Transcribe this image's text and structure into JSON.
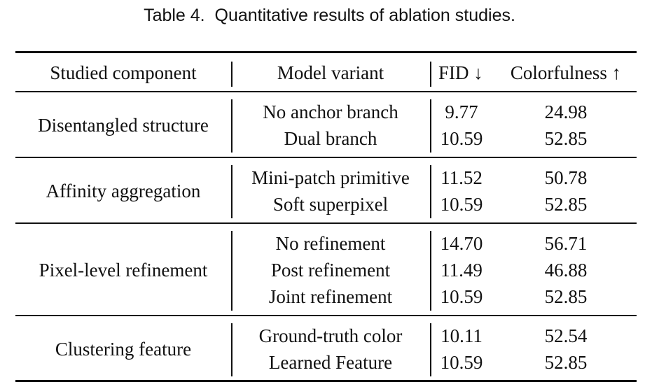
{
  "caption": "Table 4.  Quantitative results of ablation studies.",
  "table": {
    "headers": {
      "component": "Studied component",
      "variant": "Model variant",
      "fid": "FID ↓",
      "colorfulness": "Colorfulness ↑"
    },
    "groups": [
      {
        "component": "Disentangled structure",
        "rows": [
          {
            "variant": "No anchor branch",
            "fid": "9.77",
            "colorfulness": "24.98"
          },
          {
            "variant": "Dual branch",
            "fid": "10.59",
            "colorfulness": "52.85"
          }
        ]
      },
      {
        "component": "Affinity aggregation",
        "rows": [
          {
            "variant": "Mini-patch primitive",
            "fid": "11.52",
            "colorfulness": "50.78"
          },
          {
            "variant": "Soft superpixel",
            "fid": "10.59",
            "colorfulness": "52.85"
          }
        ]
      },
      {
        "component": "Pixel-level refinement",
        "rows": [
          {
            "variant": "No refinement",
            "fid": "14.70",
            "colorfulness": "56.71"
          },
          {
            "variant": "Post refinement",
            "fid": "11.49",
            "colorfulness": "46.88"
          },
          {
            "variant": "Joint refinement",
            "fid": "10.59",
            "colorfulness": "52.85"
          }
        ]
      },
      {
        "component": "Clustering feature",
        "rows": [
          {
            "variant": "Ground-truth color",
            "fid": "10.11",
            "colorfulness": "52.54"
          },
          {
            "variant": "Learned Feature",
            "fid": "10.59",
            "colorfulness": "52.85"
          }
        ]
      }
    ]
  }
}
